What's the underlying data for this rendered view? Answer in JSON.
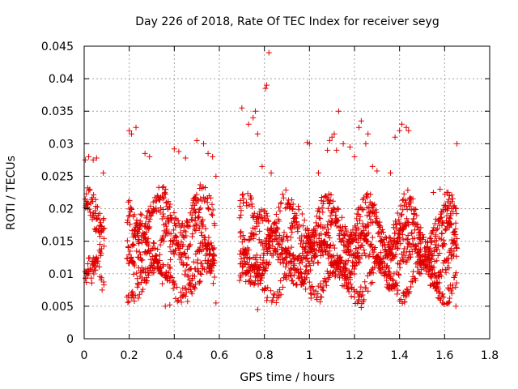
{
  "colors": {
    "marker": "#e00000",
    "grid": "#a0a0a0",
    "axis": "#000000"
  },
  "chart_data": {
    "type": "scatter",
    "title": "Day 226 of 2018, Rate Of TEC Index for receiver seyg",
    "xlabel": "GPS time / hours",
    "ylabel": "ROTI / TECUs",
    "xlim": [
      0,
      1.8
    ],
    "ylim": [
      0,
      0.045
    ],
    "grid": true,
    "marker": "+",
    "x_ticks": [
      0,
      0.2,
      0.4,
      0.6,
      0.8,
      1,
      1.2,
      1.4,
      1.6,
      1.8
    ],
    "x_tick_labels": [
      "0",
      "0.2",
      "0.4",
      "0.6",
      "0.8",
      "1",
      "1.2",
      "1.4",
      "1.6",
      "1.8"
    ],
    "y_ticks": [
      0,
      0.005,
      0.01,
      0.015,
      0.02,
      0.025,
      0.03,
      0.035,
      0.04,
      0.045
    ],
    "y_tick_labels": [
      "0",
      "0.005",
      "0.01",
      "0.015",
      "0.02",
      "0.025",
      "0.03",
      "0.035",
      "0.04",
      "0.045"
    ],
    "series": [
      {
        "name": "ROTI",
        "segments": [
          {
            "x_start": 0.0,
            "x_end": 0.09,
            "step": 0.0015,
            "tracks": [
              [
                0.0185,
                0.0035
              ],
              [
                0.0125,
                0.0028
              ],
              [
                0.0095,
                0.003
              ],
              [
                0.0205,
                0.0035
              ]
            ]
          },
          {
            "x_start": 0.19,
            "x_end": 0.58,
            "step": 0.0017,
            "tracks": [
              [
                0.0195,
                0.003
              ],
              [
                0.015,
                0.003
              ],
              [
                0.012,
                0.0025
              ],
              [
                0.009,
                0.0025
              ],
              [
                0.017,
                0.0035
              ]
            ]
          },
          {
            "x_start": 0.69,
            "x_end": 1.655,
            "step": 0.0016,
            "tracks": [
              [
                0.018,
                0.0035
              ],
              [
                0.014,
                0.0025
              ],
              [
                0.0115,
                0.0025
              ],
              [
                0.009,
                0.0025
              ],
              [
                0.016,
                0.003
              ]
            ]
          }
        ],
        "outliers": [
          [
            0.005,
            0.0275
          ],
          [
            0.02,
            0.028
          ],
          [
            0.04,
            0.0275
          ],
          [
            0.055,
            0.0278
          ],
          [
            0.085,
            0.0255
          ],
          [
            0.2,
            0.032
          ],
          [
            0.21,
            0.0315
          ],
          [
            0.23,
            0.0325
          ],
          [
            0.27,
            0.0285
          ],
          [
            0.29,
            0.028
          ],
          [
            0.4,
            0.0292
          ],
          [
            0.42,
            0.0288
          ],
          [
            0.45,
            0.0278
          ],
          [
            0.5,
            0.0305
          ],
          [
            0.53,
            0.03
          ],
          [
            0.55,
            0.0285
          ],
          [
            0.57,
            0.028
          ],
          [
            0.585,
            0.025
          ],
          [
            0.7,
            0.0355
          ],
          [
            0.73,
            0.033
          ],
          [
            0.75,
            0.034
          ],
          [
            0.76,
            0.035
          ],
          [
            0.77,
            0.0315
          ],
          [
            0.79,
            0.0265
          ],
          [
            0.805,
            0.0385
          ],
          [
            0.81,
            0.039
          ],
          [
            0.82,
            0.044
          ],
          [
            0.83,
            0.0255
          ],
          [
            0.99,
            0.0302
          ],
          [
            1.0,
            0.03
          ],
          [
            1.04,
            0.0255
          ],
          [
            1.08,
            0.029
          ],
          [
            1.09,
            0.0305
          ],
          [
            1.1,
            0.031
          ],
          [
            1.11,
            0.0315
          ],
          [
            1.12,
            0.029
          ],
          [
            1.13,
            0.035
          ],
          [
            1.15,
            0.03
          ],
          [
            1.18,
            0.0295
          ],
          [
            1.2,
            0.028
          ],
          [
            1.22,
            0.0325
          ],
          [
            1.23,
            0.0335
          ],
          [
            1.25,
            0.03
          ],
          [
            1.26,
            0.0315
          ],
          [
            1.28,
            0.0265
          ],
          [
            1.3,
            0.0258
          ],
          [
            1.36,
            0.0255
          ],
          [
            1.38,
            0.031
          ],
          [
            1.4,
            0.032
          ],
          [
            1.41,
            0.033
          ],
          [
            1.43,
            0.0325
          ],
          [
            1.44,
            0.032
          ],
          [
            1.55,
            0.0225
          ],
          [
            1.58,
            0.023
          ],
          [
            1.61,
            0.0225
          ],
          [
            1.63,
            0.02
          ],
          [
            1.655,
            0.03
          ],
          [
            1.65,
            0.005
          ],
          [
            0.36,
            0.005
          ],
          [
            0.38,
            0.0052
          ],
          [
            0.585,
            0.0055
          ],
          [
            0.77,
            0.0045
          ],
          [
            1.23,
            0.0048
          ]
        ]
      }
    ]
  }
}
